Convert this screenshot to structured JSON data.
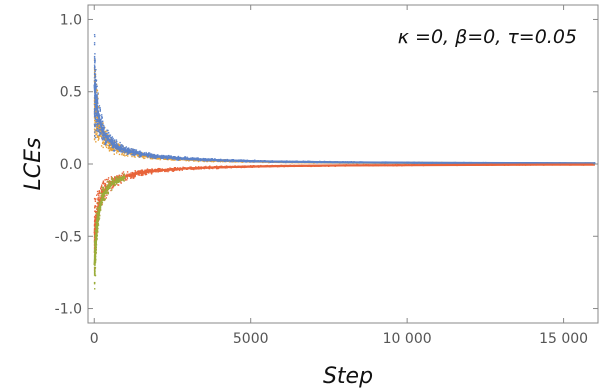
{
  "chart_data": {
    "type": "scatter",
    "title": "",
    "xlabel": "Step",
    "ylabel": "LCEs",
    "annotation": "κ =0,  β=0,  τ=0.05",
    "xlim": [
      -200,
      16100
    ],
    "ylim": [
      -1.1,
      1.1
    ],
    "x_ticks": [
      0,
      5000,
      10000,
      15000
    ],
    "x_tick_labels": [
      "0",
      "5000",
      "10 000",
      "15 000"
    ],
    "y_ticks": [
      -1.0,
      -0.5,
      0.0,
      0.5,
      1.0
    ],
    "y_tick_labels": [
      "-1.0",
      "-0.5",
      "0.0",
      "0.5",
      "1.0"
    ],
    "grid": false,
    "series": [
      {
        "color": "#e6a23c",
        "x": [
          10,
          50,
          100,
          200,
          300,
          500,
          700,
          1000,
          1500,
          2000,
          3000,
          4000,
          5000,
          6000,
          8000,
          10000,
          12000,
          14000,
          16000
        ],
        "y": [
          0.42,
          0.4,
          0.34,
          0.25,
          0.19,
          0.14,
          0.11,
          0.085,
          0.06,
          0.045,
          0.03,
          0.022,
          0.018,
          0.014,
          0.01,
          0.008,
          0.006,
          0.005,
          0.004
        ],
        "spread": [
          0.35,
          0.3,
          0.2,
          0.12,
          0.09,
          0.06,
          0.05,
          0.035,
          0.025,
          0.018,
          0.012,
          0.009,
          0.007,
          0.006,
          0.005,
          0.004,
          0.004,
          0.003,
          0.003
        ]
      },
      {
        "color": "#5b82c9",
        "x": [
          10,
          50,
          100,
          200,
          300,
          500,
          700,
          1000,
          1500,
          2000,
          3000,
          4000,
          5000,
          6000,
          8000,
          10000,
          12000,
          14000,
          16000
        ],
        "y": [
          0.55,
          0.45,
          0.37,
          0.28,
          0.21,
          0.16,
          0.125,
          0.095,
          0.07,
          0.052,
          0.036,
          0.026,
          0.02,
          0.016,
          0.012,
          0.009,
          0.007,
          0.006,
          0.005
        ],
        "spread": [
          0.4,
          0.32,
          0.2,
          0.12,
          0.09,
          0.06,
          0.045,
          0.035,
          0.025,
          0.018,
          0.012,
          0.009,
          0.007,
          0.006,
          0.005,
          0.004,
          0.004,
          0.003,
          0.003
        ]
      },
      {
        "color": "#e8643a",
        "x": [
          10,
          50,
          100,
          200,
          300,
          500,
          700,
          1000,
          1500,
          2000,
          3000,
          4000,
          5000,
          6000,
          8000,
          10000,
          12000,
          14000,
          16000
        ],
        "y": [
          -0.48,
          -0.42,
          -0.34,
          -0.25,
          -0.19,
          -0.14,
          -0.11,
          -0.085,
          -0.06,
          -0.045,
          -0.03,
          -0.022,
          -0.018,
          -0.014,
          -0.01,
          -0.008,
          -0.006,
          -0.005,
          -0.004
        ],
        "spread": [
          0.3,
          0.25,
          0.18,
          0.12,
          0.09,
          0.06,
          0.05,
          0.035,
          0.025,
          0.018,
          0.012,
          0.009,
          0.007,
          0.006,
          0.005,
          0.004,
          0.004,
          0.003,
          0.003
        ]
      },
      {
        "color": "#9aad3a",
        "x": [
          10,
          50,
          100,
          200,
          300,
          500,
          700,
          1000
        ],
        "y": [
          -0.7,
          -0.55,
          -0.4,
          -0.28,
          -0.21,
          -0.15,
          -0.12,
          -0.09
        ],
        "spread": [
          0.28,
          0.2,
          0.15,
          0.1,
          0.07,
          0.05,
          0.04,
          0.03
        ]
      }
    ]
  }
}
